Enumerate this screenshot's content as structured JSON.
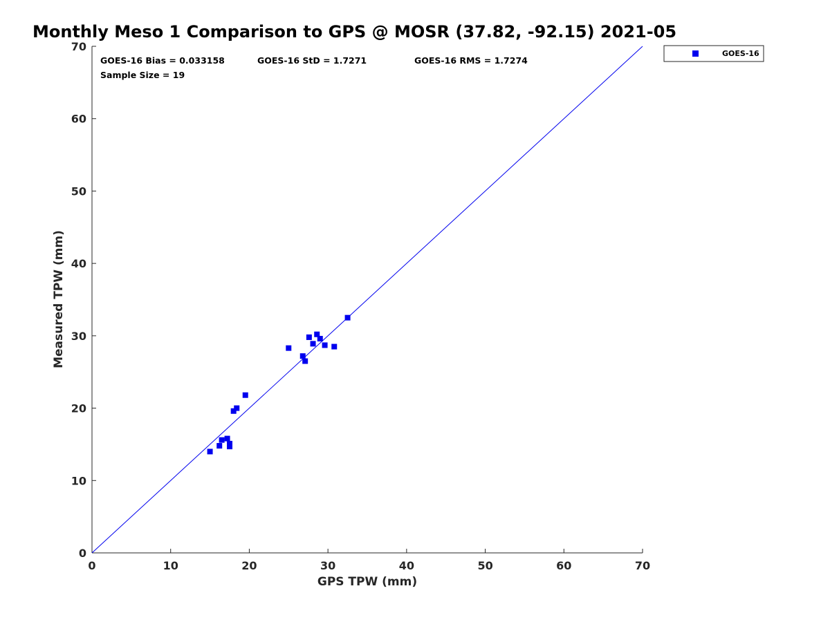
{
  "chart_data": {
    "type": "scatter",
    "title": "Monthly Meso 1 Comparison to GPS @ MOSR (37.82, -92.15) 2021-05",
    "xlabel": "GPS TPW (mm)",
    "ylabel": "Measured TPW (mm)",
    "xlim": [
      0,
      70
    ],
    "ylim": [
      0,
      70
    ],
    "xticks": [
      "0",
      "10",
      "20",
      "30",
      "40",
      "50",
      "60",
      "70"
    ],
    "yticks": [
      "0",
      "10",
      "20",
      "30",
      "40",
      "50",
      "60",
      "70"
    ],
    "grid": false,
    "legend_position": "outside-top-right",
    "reference_line": {
      "x": [
        0,
        70
      ],
      "y": [
        0,
        70
      ],
      "color": "#0000ee"
    },
    "stats": {
      "bias": "GOES-16 Bias = 0.033158",
      "std": "GOES-16 StD = 1.7271",
      "rms": "GOES-16 RMS = 1.7274",
      "sample_size": "Sample Size = 19"
    },
    "series": [
      {
        "name": "GOES-16",
        "color": "#0000ee",
        "marker": "square",
        "x": [
          15.0,
          16.2,
          16.5,
          17.2,
          17.5,
          17.5,
          18.0,
          18.4,
          19.5,
          25.0,
          26.8,
          27.1,
          27.6,
          28.1,
          28.6,
          29.0,
          29.6,
          30.8,
          32.5
        ],
        "y": [
          14.0,
          14.8,
          15.6,
          15.8,
          15.1,
          14.7,
          19.6,
          20.0,
          21.8,
          28.3,
          27.2,
          26.5,
          29.8,
          28.9,
          30.2,
          29.6,
          28.7,
          28.5,
          32.5
        ]
      }
    ]
  }
}
